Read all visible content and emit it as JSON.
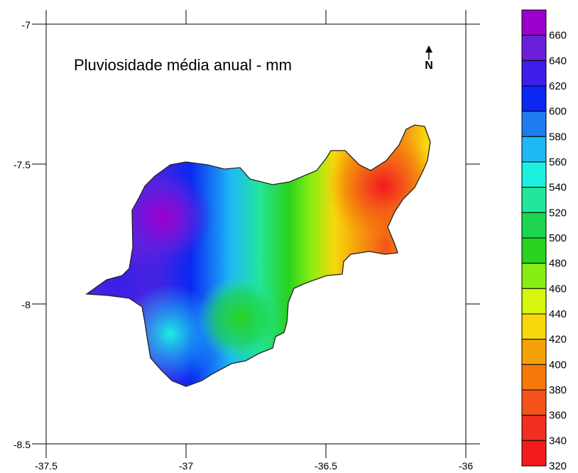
{
  "map": {
    "title": "Pluviosidade média anual - mm",
    "north_symbol": "N",
    "x_ticks": [
      "-37.5",
      "-37",
      "-36.5",
      "-36"
    ],
    "y_ticks": [
      "-7",
      "-7.5",
      "-8",
      "-8.5"
    ],
    "x_range": [
      -37.5,
      -36
    ],
    "y_range": [
      -8.5,
      -7
    ]
  },
  "legend": {
    "labels": [
      "660",
      "640",
      "620",
      "600",
      "580",
      "560",
      "540",
      "520",
      "500",
      "480",
      "460",
      "440",
      "420",
      "400",
      "380",
      "360",
      "340",
      "320"
    ],
    "colors": [
      "#9900CC",
      "#6A1FD8",
      "#3C1EE8",
      "#0A28F2",
      "#1E7CF0",
      "#1FB8F6",
      "#1EF0E0",
      "#22E69A",
      "#1ED54F",
      "#28D21E",
      "#88EE12",
      "#D6F50F",
      "#F6D80C",
      "#F6A10A",
      "#F57A0A",
      "#F3531A",
      "#F22E1E",
      "#F21B1B"
    ]
  }
}
